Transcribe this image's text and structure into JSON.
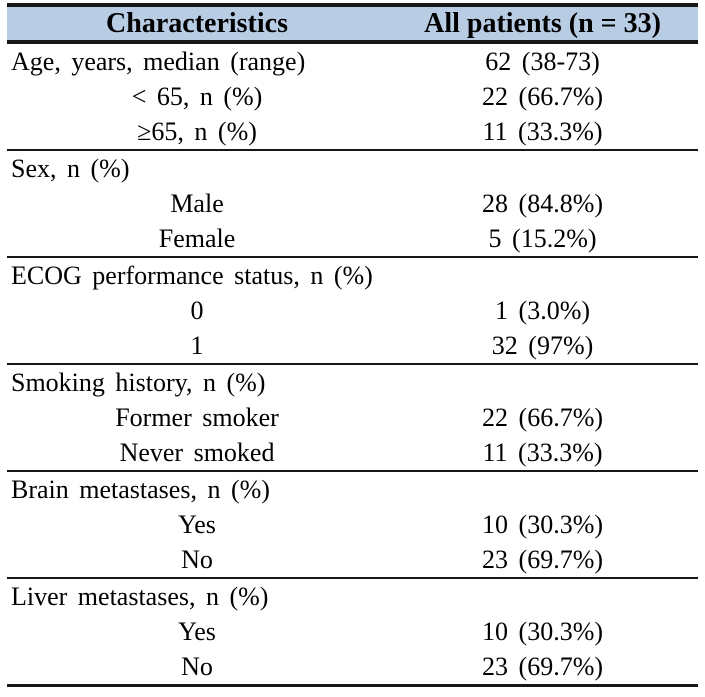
{
  "table": {
    "header": {
      "characteristics": "Characteristics",
      "all_patients": "All patients (n = 33)"
    },
    "rows": [
      {
        "label": "Age, years, median (range)",
        "value": "62 (38-73)"
      },
      {
        "label": "< 65, n (%)",
        "value": "22 (66.7%)"
      },
      {
        "label": "≥65, n (%)",
        "value": "11 (33.3%)"
      },
      {
        "label": "Sex, n (%)",
        "value": ""
      },
      {
        "label": "Male",
        "value": "28 (84.8%)"
      },
      {
        "label": "Female",
        "value": "5 (15.2%)"
      },
      {
        "label": "ECOG performance status, n (%)",
        "value": ""
      },
      {
        "label": "0",
        "value": "1 (3.0%)"
      },
      {
        "label": "1",
        "value": "32 (97%)"
      },
      {
        "label": "Smoking history, n (%)",
        "value": ""
      },
      {
        "label": "Former smoker",
        "value": "22 (66.7%)"
      },
      {
        "label": "Never smoked",
        "value": "11 (33.3%)"
      },
      {
        "label": "Brain metastases, n (%)",
        "value": ""
      },
      {
        "label": "Yes",
        "value": "10 (30.3%)"
      },
      {
        "label": "No",
        "value": "23 (69.7%)"
      },
      {
        "label": "Liver metastases, n (%)",
        "value": ""
      },
      {
        "label": "Yes",
        "value": "10 (30.3%)"
      },
      {
        "label": "No",
        "value": "23 (69.7%)"
      }
    ],
    "colors": {
      "header_bg": "#b8cce4",
      "border": "#161616",
      "text": "#000000"
    }
  }
}
